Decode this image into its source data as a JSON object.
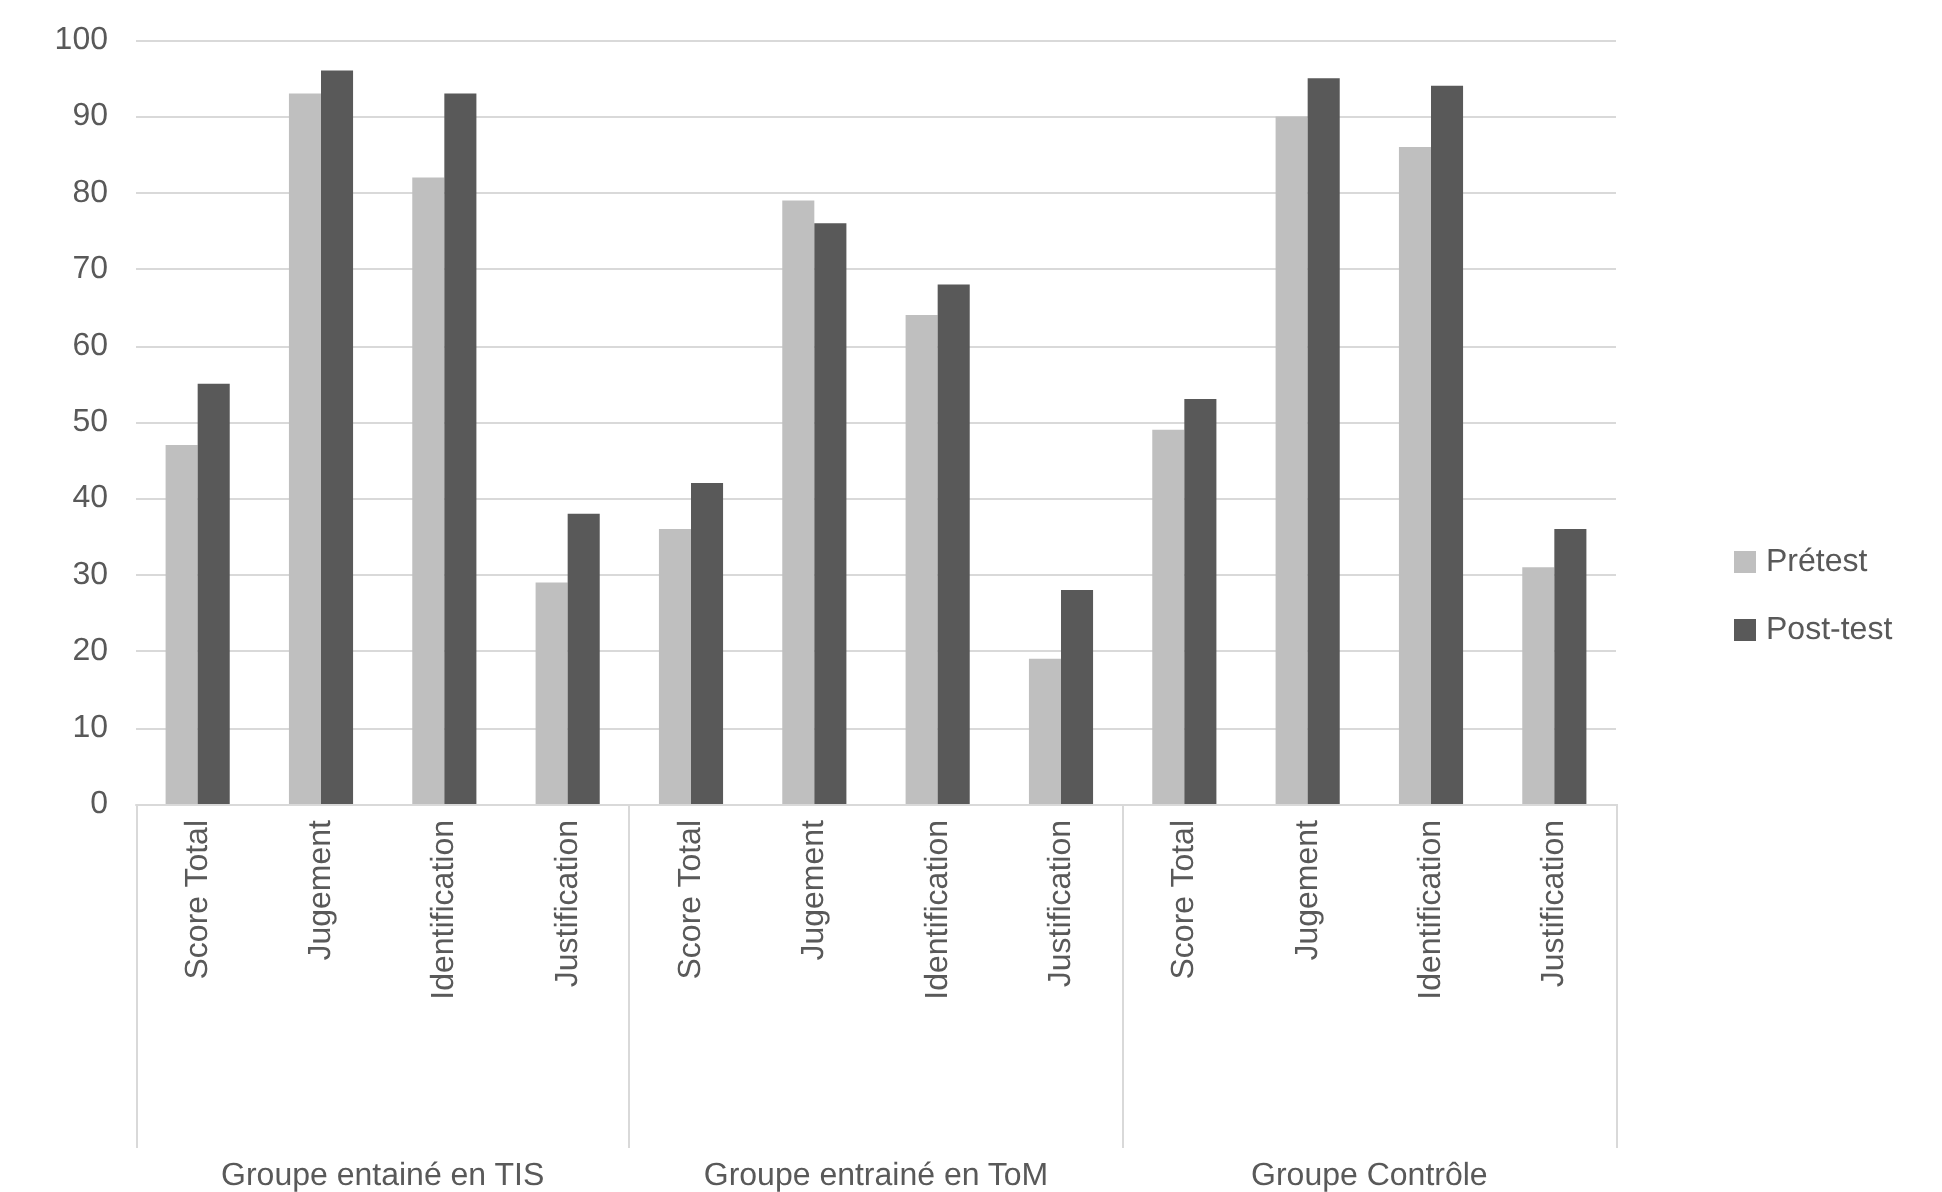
{
  "chart_data": {
    "type": "bar",
    "categories": [
      "Score Total",
      "Jugement",
      "Identification",
      "Justification",
      "Score Total",
      "Jugement",
      "Identification",
      "Justification",
      "Score Total",
      "Jugement",
      "Identification",
      "Justification"
    ],
    "series": [
      {
        "name": "Prétest",
        "color": "#bfbfbf",
        "values": [
          47,
          93,
          82,
          29,
          36,
          79,
          64,
          19,
          49,
          90,
          86,
          31
        ]
      },
      {
        "name": "Post-test",
        "color": "#595959",
        "values": [
          55,
          96,
          93,
          38,
          42,
          76,
          68,
          28,
          53,
          95,
          94,
          36
        ]
      }
    ],
    "annotations": [
      "Groupe entainé en TIS",
      "Groupe entrainé en ToM",
      "Groupe Contrôle"
    ],
    "ylim": [
      0,
      100
    ],
    "yticks": [
      0,
      10,
      20,
      30,
      40,
      50,
      60,
      70,
      80,
      90,
      100
    ],
    "grid": "y",
    "legend": "right"
  }
}
